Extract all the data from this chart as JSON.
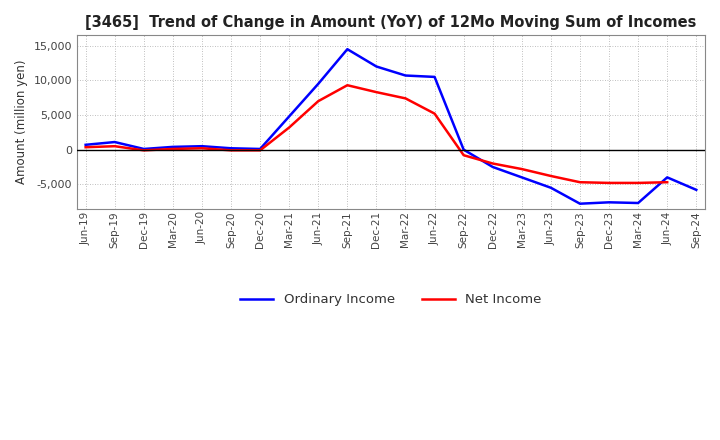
{
  "title": "[3465]  Trend of Change in Amount (YoY) of 12Mo Moving Sum of Incomes",
  "ylabel": "Amount (million yen)",
  "background_color": "#ffffff",
  "grid_color": "#aaaaaa",
  "x_labels": [
    "Jun-19",
    "Sep-19",
    "Dec-19",
    "Mar-20",
    "Jun-20",
    "Sep-20",
    "Dec-20",
    "Mar-21",
    "Jun-21",
    "Sep-21",
    "Dec-21",
    "Mar-22",
    "Jun-22",
    "Sep-22",
    "Dec-22",
    "Mar-23",
    "Jun-23",
    "Sep-23",
    "Dec-23",
    "Mar-24",
    "Jun-24",
    "Sep-24"
  ],
  "ordinary_income": [
    700,
    1100,
    100,
    400,
    500,
    200,
    100,
    4800,
    9500,
    14500,
    12000,
    10700,
    10500,
    0,
    -2500,
    -4000,
    -5500,
    -7800,
    -7600,
    -7700,
    -4000,
    -5800
  ],
  "net_income": [
    350,
    500,
    -100,
    100,
    200,
    -100,
    -100,
    3200,
    7000,
    9300,
    8300,
    7400,
    5200,
    -800,
    -2000,
    -2800,
    -3800,
    -4700,
    -4800,
    -4800,
    -4700,
    null
  ],
  "ordinary_color": "#0000ff",
  "net_color": "#ff0000",
  "ylim": [
    -8500,
    16500
  ],
  "yticks": [
    -5000,
    0,
    5000,
    10000,
    15000
  ],
  "legend_labels": [
    "Ordinary Income",
    "Net Income"
  ]
}
